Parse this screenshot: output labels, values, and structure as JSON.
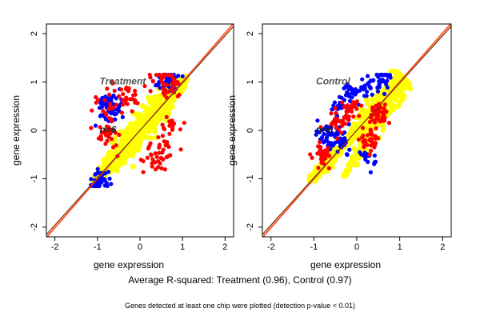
{
  "colors": {
    "treatment_outlier": "#ff0000",
    "control_outlier": "#0000ff",
    "bulk": "#ffff00",
    "fit_line_red": "#ff0000",
    "fit_line_orange": "#ff8800",
    "fit_line_dark": "#5a2a2a"
  },
  "caption": {
    "main": "Average R-squared: Treatment (0.96), Control (0.97)",
    "note": "Genes detected at least one chip were plotted (detection p-value < 0.01)"
  },
  "chart_data": [
    {
      "type": "scatter",
      "title": "Treatment",
      "annotation": "n=6",
      "xlabel": "gene expression",
      "ylabel": "gene expression",
      "xlim": [
        -2.2,
        2.2
      ],
      "ylim": [
        -2.2,
        2.2
      ],
      "xticks": [
        -2,
        -1,
        0,
        1,
        2
      ],
      "yticks": [
        -2,
        -1,
        0,
        1,
        2
      ],
      "series": [
        {
          "color": "red",
          "spread": 0.35,
          "points": [
            [
              -0.7,
              0.55
            ],
            [
              -0.4,
              0.75
            ],
            [
              -0.2,
              0.65
            ],
            [
              0.5,
              1.05
            ],
            [
              0.6,
              0.95
            ],
            [
              0.8,
              1.0
            ],
            [
              -0.8,
              -0.1
            ],
            [
              -0.75,
              0.0
            ],
            [
              0.4,
              -0.55
            ],
            [
              0.55,
              -0.4
            ],
            [
              0.3,
              -0.6
            ],
            [
              0.7,
              0.1
            ]
          ]
        },
        {
          "color": "blue",
          "spread": 0.3,
          "points": [
            [
              -0.7,
              0.4
            ],
            [
              0.6,
              1.0
            ],
            [
              -0.7,
              0.55
            ],
            [
              -1.0,
              -1.05
            ]
          ]
        },
        {
          "color": "yellow",
          "spread": 0.25,
          "points": [
            [
              -1.1,
              -1.05
            ],
            [
              -0.5,
              -0.5
            ],
            [
              0.0,
              0.0
            ],
            [
              0.5,
              0.5
            ],
            [
              1.1,
              1.1
            ]
          ]
        }
      ],
      "fit_lines": [
        {
          "color": "red",
          "x": [
            -2.2,
            2.2
          ],
          "y": [
            -2.22,
            2.22
          ]
        },
        {
          "color": "orange",
          "x": [
            -2.2,
            2.2
          ],
          "y": [
            -2.18,
            2.18
          ]
        },
        {
          "color": "dark",
          "x": [
            -2.2,
            2.2
          ],
          "y": [
            -2.15,
            2.15
          ]
        }
      ]
    },
    {
      "type": "scatter",
      "title": "Control",
      "annotation": "n=6",
      "xlabel": "gene expression",
      "ylabel": "gene expression",
      "xlim": [
        -2.2,
        2.2
      ],
      "ylim": [
        -2.2,
        2.2
      ],
      "xticks": [
        -2,
        -1,
        0,
        1,
        2
      ],
      "yticks": [
        -2,
        -1,
        0,
        1,
        2
      ],
      "series": [
        {
          "color": "red",
          "spread": 0.25,
          "points": [
            [
              -0.8,
              -0.5
            ],
            [
              -0.2,
              0.4
            ],
            [
              0.3,
              -0.2
            ],
            [
              -0.5,
              0.2
            ],
            [
              0.5,
              0.3
            ]
          ]
        },
        {
          "color": "blue",
          "spread": 0.28,
          "points": [
            [
              -0.6,
              0.05
            ],
            [
              -0.4,
              0.55
            ],
            [
              -0.1,
              0.8
            ],
            [
              0.3,
              0.9
            ],
            [
              0.6,
              1.05
            ],
            [
              -0.7,
              -0.15
            ],
            [
              0.2,
              -0.6
            ],
            [
              -0.3,
              -0.3
            ]
          ]
        },
        {
          "color": "yellow",
          "spread": 0.25,
          "points": [
            [
              -1.1,
              -1.05
            ],
            [
              -0.5,
              -0.5
            ],
            [
              0.0,
              0.0
            ],
            [
              0.5,
              0.5
            ],
            [
              1.1,
              1.1
            ],
            [
              -0.3,
              -0.95
            ]
          ]
        }
      ],
      "fit_lines": [
        {
          "color": "red",
          "x": [
            -2.2,
            2.2
          ],
          "y": [
            -2.22,
            2.22
          ]
        },
        {
          "color": "orange",
          "x": [
            -2.2,
            2.2
          ],
          "y": [
            -2.18,
            2.18
          ]
        },
        {
          "color": "dark",
          "x": [
            -2.2,
            2.2
          ],
          "y": [
            -2.15,
            2.15
          ]
        }
      ]
    }
  ]
}
